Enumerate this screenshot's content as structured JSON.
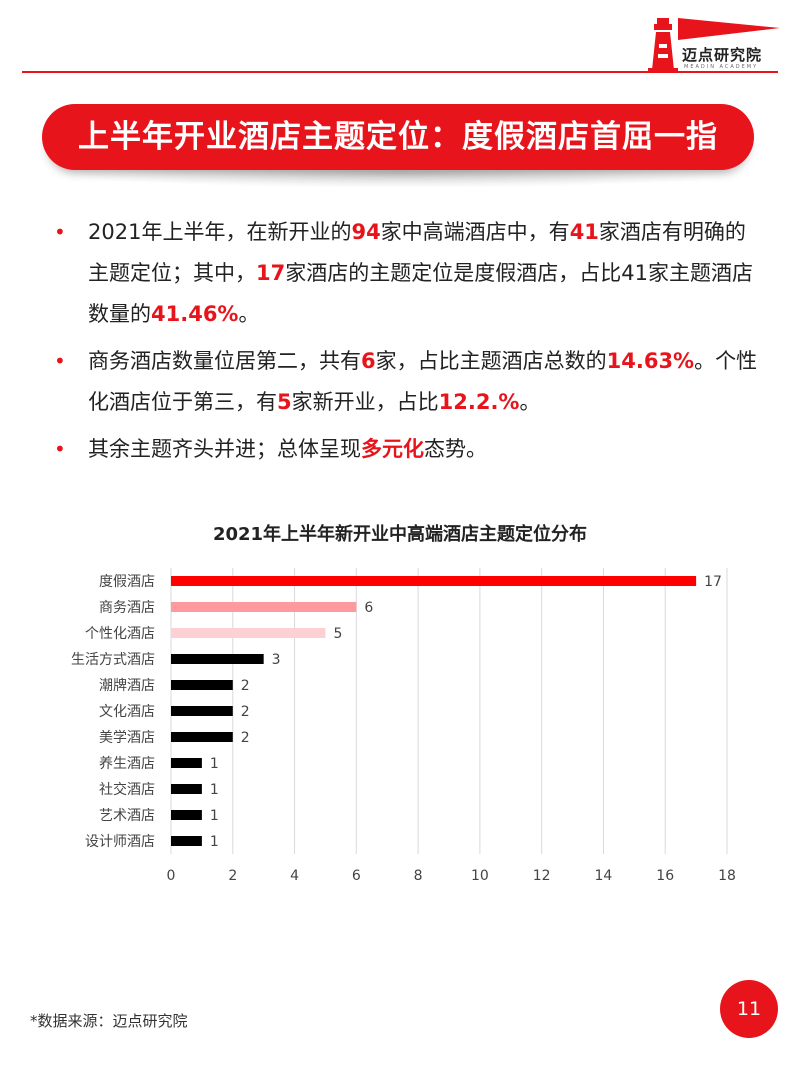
{
  "header": {
    "logo_text": "迈点研究院",
    "logo_sub": "MEADIN ACADEMY",
    "accent": "#e8141b"
  },
  "title": "上半年开业酒店主题定位：度假酒店首屈一指",
  "bullets": [
    [
      {
        "t": "2021年上半年，在新开业的"
      },
      {
        "t": "94",
        "h": true
      },
      {
        "t": "家中高端酒店中，有"
      },
      {
        "t": "41",
        "h": true
      },
      {
        "t": "家酒店有明确的主题定位；其中，"
      },
      {
        "t": "17",
        "h": true
      },
      {
        "t": "家酒店的主题定位是度假酒店，占比41家主题酒店数量的"
      },
      {
        "t": "41.46%",
        "h": true
      },
      {
        "t": "。"
      }
    ],
    [
      {
        "t": "商务酒店数量位居第二，共有"
      },
      {
        "t": "6",
        "h": true
      },
      {
        "t": "家，占比主题酒店总数的"
      },
      {
        "t": "14.63%",
        "h": true
      },
      {
        "t": "。个性化酒店位于第三，有"
      },
      {
        "t": "5",
        "h": true
      },
      {
        "t": "家新开业，占比"
      },
      {
        "t": "12.2.%",
        "h": true
      },
      {
        "t": "。"
      }
    ],
    [
      {
        "t": "其余主题齐头并进；总体呈现"
      },
      {
        "t": "多元化",
        "h": true
      },
      {
        "t": "态势。"
      }
    ]
  ],
  "chart_data": {
    "type": "bar",
    "orientation": "horizontal",
    "title": "2021年上半年新开业中高端酒店主题定位分布",
    "categories": [
      "度假酒店",
      "商务酒店",
      "个性化酒店",
      "生活方式酒店",
      "潮牌酒店",
      "文化酒店",
      "美学酒店",
      "养生酒店",
      "社交酒店",
      "艺术酒店",
      "设计师酒店"
    ],
    "values": [
      17,
      6,
      5,
      3,
      2,
      2,
      2,
      1,
      1,
      1,
      1
    ],
    "colors": [
      "#ff0000",
      "#fe9a9f",
      "#fdd0d3",
      "#000000",
      "#000000",
      "#000000",
      "#000000",
      "#000000",
      "#000000",
      "#000000",
      "#000000"
    ],
    "xlim": [
      0,
      18
    ],
    "xticks": [
      0,
      2,
      4,
      6,
      8,
      10,
      12,
      14,
      16,
      18
    ],
    "grid": true,
    "data_labels": true
  },
  "footer": {
    "source": "*数据来源：迈点研究院",
    "page_number": "11"
  }
}
